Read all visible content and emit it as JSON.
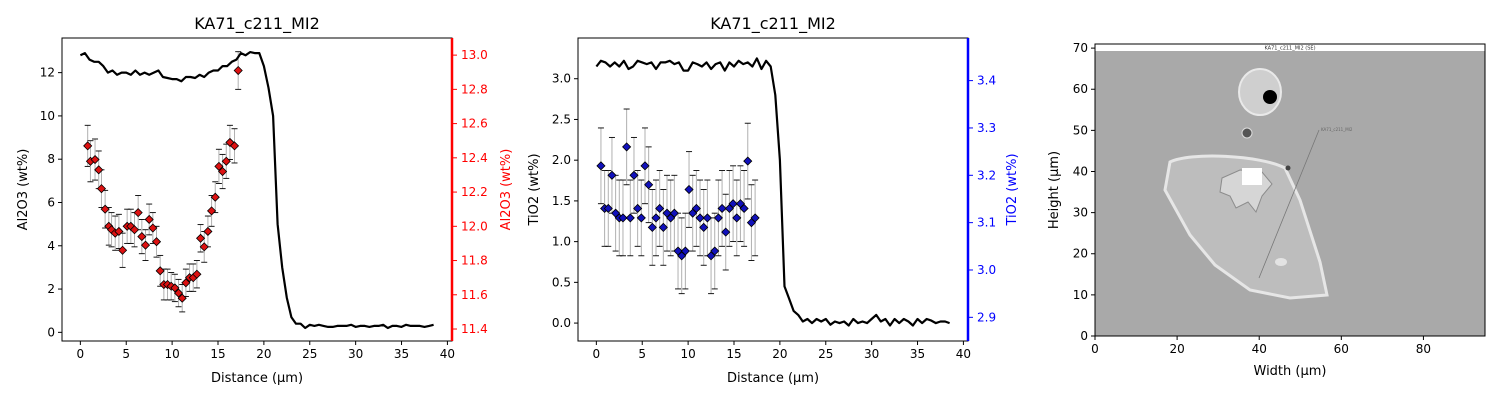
{
  "chart_data": [
    {
      "type": "scatter",
      "title": "KA71_c211_MI2",
      "xlabel": "Distance (µm)",
      "ylabel": "Al2O3 (wt%)",
      "ylabel_right": "Al2O3 (wt%)",
      "xlim": [
        -2,
        40.5
      ],
      "ylim": [
        -0.4,
        13.6
      ],
      "ylim_right": [
        11.33,
        13.1
      ],
      "x_ticks": [
        0,
        5,
        10,
        15,
        20,
        25,
        30,
        35,
        40
      ],
      "y_ticks": [
        0,
        2,
        4,
        6,
        8,
        10,
        12
      ],
      "y_ticks_right": [
        11.4,
        11.6,
        11.8,
        12.0,
        12.2,
        12.4,
        12.6,
        12.8,
        13.0
      ],
      "y_ticks_right_labels": [
        "11.4",
        "11.6",
        "11.8",
        "12.0",
        "12.2",
        "12.4",
        "12.6",
        "12.8",
        "13.0"
      ],
      "right_axis_color": "#ff0000",
      "marker_color": "#dd1111",
      "series": [
        {
          "kind": "points_with_errorbars",
          "axis": "right",
          "x": [
            0.8,
            1.1,
            1.6,
            2.0,
            2.3,
            2.7,
            3.1,
            3.4,
            3.8,
            4.2,
            4.6,
            5.1,
            5.5,
            5.9,
            6.3,
            6.7,
            7.1,
            7.5,
            7.9,
            8.3,
            8.7,
            9.1,
            9.5,
            9.9,
            10.3,
            10.7,
            11.1,
            11.5,
            11.9,
            12.3,
            12.7,
            13.1,
            13.5,
            13.9,
            14.3,
            14.7,
            15.1,
            15.5,
            15.9,
            16.3,
            16.8,
            17.2
          ],
          "y": [
            12.47,
            12.38,
            12.39,
            12.33,
            12.22,
            12.1,
            12.0,
            11.98,
            11.96,
            11.97,
            11.86,
            12.0,
            12.0,
            11.98,
            12.08,
            11.94,
            11.89,
            12.04,
            11.99,
            11.91,
            11.74,
            11.66,
            11.66,
            11.65,
            11.64,
            11.61,
            11.58,
            11.67,
            11.7,
            11.7,
            11.72,
            11.93,
            11.88,
            11.97,
            12.09,
            12.17,
            12.35,
            12.32,
            12.38,
            12.49,
            12.47,
            12.91
          ],
          "err": [
            0.12,
            0.12,
            0.12,
            0.11,
            0.11,
            0.11,
            0.11,
            0.1,
            0.1,
            0.1,
            0.1,
            0.1,
            0.1,
            0.1,
            0.1,
            0.1,
            0.09,
            0.09,
            0.09,
            0.09,
            0.09,
            0.09,
            0.09,
            0.08,
            0.08,
            0.08,
            0.08,
            0.08,
            0.08,
            0.08,
            0.08,
            0.08,
            0.09,
            0.09,
            0.09,
            0.09,
            0.1,
            0.1,
            0.1,
            0.1,
            0.1,
            0.11
          ]
        },
        {
          "kind": "line",
          "axis": "left",
          "x": [
            0,
            0.5,
            1,
            1.5,
            2,
            2.5,
            3,
            3.5,
            4,
            4.5,
            5,
            5.5,
            6,
            6.5,
            7,
            7.5,
            8,
            8.5,
            9,
            9.5,
            10,
            10.5,
            11,
            11.5,
            12,
            12.5,
            13,
            13.5,
            14,
            14.5,
            15,
            15.5,
            16,
            16.5,
            17,
            17.5,
            18,
            18.5,
            19,
            19.5,
            20,
            20.5,
            21,
            21.5,
            22,
            22.5,
            23,
            23.5,
            24,
            24.5,
            25,
            25.5,
            26,
            26.5,
            27,
            27.5,
            28,
            28.5,
            29,
            29.5,
            30,
            30.5,
            31,
            31.5,
            32,
            32.5,
            33,
            33.5,
            34,
            34.5,
            35,
            35.5,
            36,
            36.5,
            37,
            37.5,
            38,
            38.5
          ],
          "y": [
            12.8,
            12.9,
            12.6,
            12.5,
            12.5,
            12.3,
            12.0,
            12.1,
            11.9,
            12.0,
            12.0,
            11.9,
            12.1,
            11.9,
            12.0,
            11.9,
            12.0,
            12.1,
            11.8,
            11.75,
            11.7,
            11.7,
            11.6,
            11.8,
            11.8,
            11.75,
            11.9,
            11.8,
            12.0,
            12.1,
            12.1,
            12.3,
            12.3,
            12.5,
            12.6,
            12.9,
            12.8,
            12.95,
            12.9,
            12.9,
            12.3,
            11.3,
            10.0,
            5.0,
            3.0,
            1.6,
            0.7,
            0.4,
            0.4,
            0.2,
            0.35,
            0.3,
            0.35,
            0.3,
            0.25,
            0.25,
            0.3,
            0.3,
            0.3,
            0.35,
            0.25,
            0.3,
            0.3,
            0.25,
            0.3,
            0.3,
            0.35,
            0.2,
            0.3,
            0.3,
            0.25,
            0.35,
            0.3,
            0.3,
            0.3,
            0.25,
            0.3,
            0.35
          ]
        }
      ]
    },
    {
      "type": "scatter",
      "title": "KA71_c211_MI2",
      "xlabel": "Distance (µm)",
      "ylabel": "TiO2 (wt%)",
      "ylabel_right": "TiO2 (wt%)",
      "xlim": [
        -2,
        40.5
      ],
      "ylim": [
        -0.22,
        3.5
      ],
      "ylim_right": [
        2.85,
        3.49
      ],
      "x_ticks": [
        0,
        5,
        10,
        15,
        20,
        25,
        30,
        35,
        40
      ],
      "y_ticks": [
        0.0,
        0.5,
        1.0,
        1.5,
        2.0,
        2.5,
        3.0
      ],
      "y_ticks_labels": [
        "0.0",
        "0.5",
        "1.0",
        "1.5",
        "2.0",
        "2.5",
        "3.0"
      ],
      "y_ticks_right": [
        2.9,
        3.0,
        3.1,
        3.2,
        3.3,
        3.4
      ],
      "y_ticks_right_labels": [
        "2.9",
        "3.0",
        "3.1",
        "3.2",
        "3.3",
        "3.4"
      ],
      "right_axis_color": "#0000ff",
      "marker_color": "#1111bb",
      "series": [
        {
          "kind": "points_with_errorbars",
          "axis": "right",
          "x": [
            0.5,
            0.9,
            1.3,
            1.7,
            2.1,
            2.5,
            2.9,
            3.3,
            3.7,
            4.1,
            4.5,
            4.9,
            5.3,
            5.7,
            6.1,
            6.5,
            6.9,
            7.3,
            7.7,
            8.1,
            8.5,
            8.9,
            9.3,
            9.7,
            10.1,
            10.5,
            10.9,
            11.3,
            11.7,
            12.1,
            12.5,
            12.9,
            13.3,
            13.7,
            14.1,
            14.5,
            14.9,
            15.3,
            15.7,
            16.1,
            16.5,
            16.9,
            17.3
          ],
          "y": [
            3.22,
            3.13,
            3.13,
            3.2,
            3.12,
            3.11,
            3.11,
            3.26,
            3.11,
            3.2,
            3.13,
            3.11,
            3.22,
            3.18,
            3.09,
            3.11,
            3.13,
            3.09,
            3.12,
            3.11,
            3.12,
            3.04,
            3.03,
            3.04,
            3.17,
            3.12,
            3.13,
            3.11,
            3.09,
            3.11,
            3.03,
            3.04,
            3.11,
            3.13,
            3.08,
            3.13,
            3.14,
            3.11,
            3.14,
            3.13,
            3.23,
            3.1,
            3.11
          ],
          "err": [
            0.08,
            0.08,
            0.08,
            0.08,
            0.08,
            0.08,
            0.08,
            0.08,
            0.08,
            0.08,
            0.08,
            0.08,
            0.08,
            0.08,
            0.08,
            0.08,
            0.08,
            0.08,
            0.08,
            0.08,
            0.08,
            0.08,
            0.08,
            0.08,
            0.08,
            0.08,
            0.08,
            0.08,
            0.08,
            0.08,
            0.08,
            0.08,
            0.08,
            0.08,
            0.08,
            0.08,
            0.08,
            0.08,
            0.08,
            0.08,
            0.08,
            0.08,
            0.08
          ]
        },
        {
          "kind": "line",
          "axis": "left",
          "x": [
            0,
            0.5,
            1,
            1.5,
            2,
            2.5,
            3,
            3.5,
            4,
            4.5,
            5,
            5.5,
            6,
            6.5,
            7,
            7.5,
            8,
            8.5,
            9,
            9.5,
            10,
            10.5,
            11,
            11.5,
            12,
            12.5,
            13,
            13.5,
            14,
            14.5,
            15,
            15.5,
            16,
            16.5,
            17,
            17.5,
            18,
            18.5,
            19,
            19.5,
            20,
            20.5,
            21,
            21.5,
            22,
            22.5,
            23,
            23.5,
            24,
            24.5,
            25,
            25.5,
            26,
            26.5,
            27,
            27.5,
            28,
            28.5,
            29,
            29.5,
            30,
            30.5,
            31,
            31.5,
            32,
            32.5,
            33,
            33.5,
            34,
            34.5,
            35,
            35.5,
            36,
            36.5,
            37,
            37.5,
            38,
            38.5
          ],
          "y": [
            3.15,
            3.22,
            3.2,
            3.15,
            3.2,
            3.15,
            3.22,
            3.12,
            3.15,
            3.22,
            3.2,
            3.18,
            3.2,
            3.12,
            3.2,
            3.2,
            3.22,
            3.18,
            3.2,
            3.1,
            3.1,
            3.2,
            3.18,
            3.15,
            3.2,
            3.12,
            3.18,
            3.2,
            3.1,
            3.2,
            3.15,
            3.22,
            3.18,
            3.2,
            3.15,
            3.25,
            3.12,
            3.22,
            3.15,
            2.8,
            2.0,
            0.45,
            0.3,
            0.15,
            0.1,
            0.02,
            0.05,
            0.0,
            0.05,
            0.02,
            0.05,
            -0.02,
            0.02,
            0.0,
            0.02,
            -0.03,
            0.05,
            0.0,
            0.02,
            0.0,
            0.05,
            0.1,
            0.02,
            0.05,
            -0.03,
            0.05,
            0.0,
            0.05,
            0.02,
            -0.03,
            0.05,
            0.0,
            0.05,
            0.03,
            0.0,
            0.02,
            0.02,
            0.0
          ]
        }
      ]
    },
    {
      "type": "image",
      "title": "",
      "image_label": "KA71_c211_MI2 (SE)",
      "profile_label": "KA71_c211_MI2",
      "xlabel": "Width (µm)",
      "ylabel": "Height (µm)",
      "xlim": [
        0,
        95
      ],
      "ylim": [
        0,
        71
      ],
      "x_ticks": [
        0,
        20,
        40,
        60,
        80
      ],
      "y_ticks": [
        0,
        10,
        20,
        30,
        40,
        50,
        60,
        70
      ]
    }
  ]
}
